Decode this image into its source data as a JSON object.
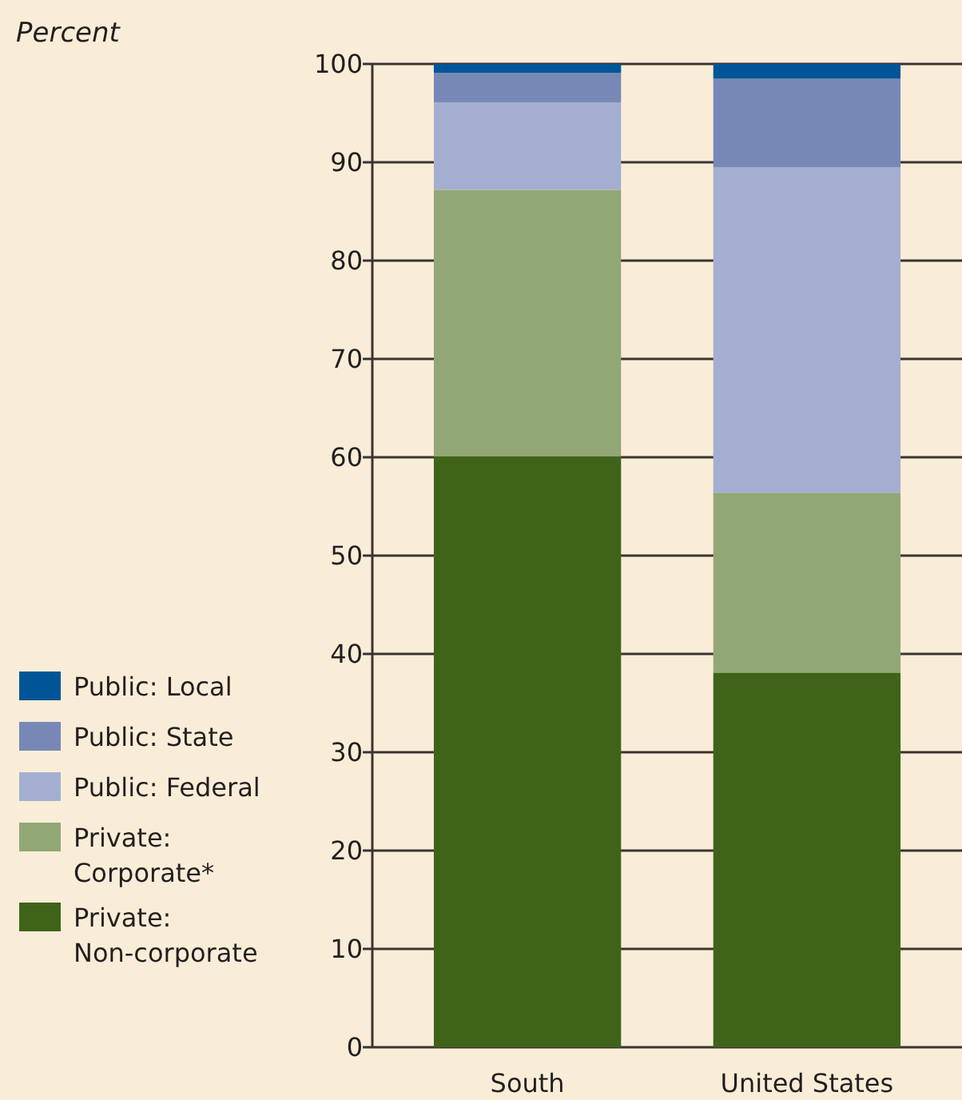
{
  "chart_data": {
    "type": "bar",
    "stacked": true,
    "annotations": [
      "Percent"
    ],
    "categories": [
      "South",
      "United States"
    ],
    "series": [
      {
        "name": "Private: Non-corporate",
        "color": "#3f6419",
        "values": [
          60.1,
          38.1
        ]
      },
      {
        "name": "Private: Corporate*",
        "color": "#92a776",
        "values": [
          27.1,
          18.3
        ]
      },
      {
        "name": "Public: Federal",
        "color": "#a4aed0",
        "values": [
          8.9,
          33.1
        ]
      },
      {
        "name": "Public: State",
        "color": "#7888b6",
        "values": [
          3.0,
          9.0
        ]
      },
      {
        "name": "Public: Local",
        "color": "#005597",
        "values": [
          0.9,
          1.5
        ]
      }
    ],
    "ylim": [
      0,
      100
    ],
    "yticks": [
      0,
      10,
      20,
      30,
      40,
      50,
      60,
      70,
      80,
      90,
      100
    ],
    "grid": "y",
    "legend": "left"
  }
}
